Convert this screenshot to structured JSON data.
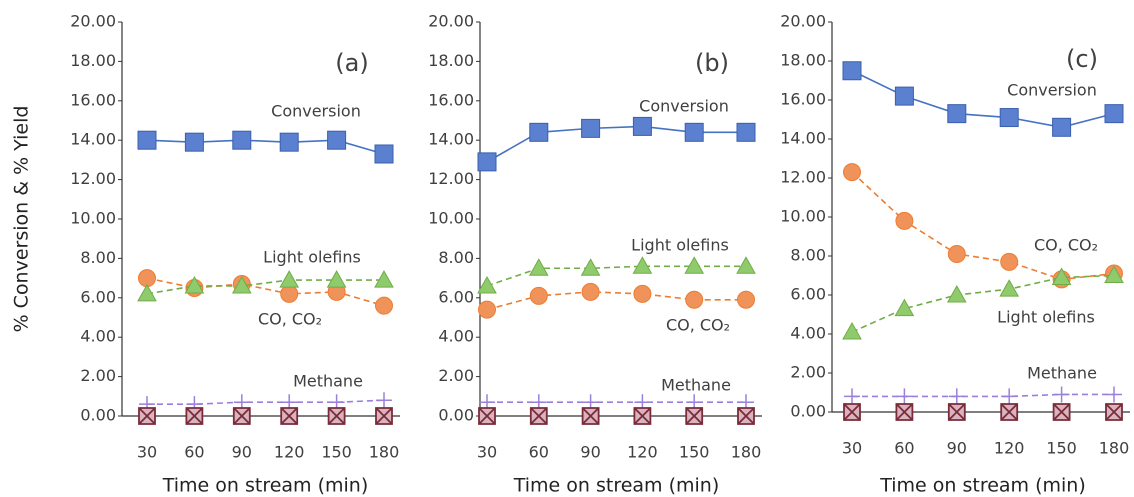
{
  "chart_data": [
    {
      "type": "line",
      "title": "(a)",
      "xlabel": "Time on stream (min)",
      "ylabel": "% Conversion & % Yield",
      "categories": [
        "30",
        "60",
        "90",
        "120",
        "150",
        "180"
      ],
      "ylim": [
        0,
        20
      ],
      "yticks": [
        {
          "value": 0,
          "label": "0.00"
        },
        {
          "value": 2,
          "label": "2.00"
        },
        {
          "value": 4,
          "label": "4.00"
        },
        {
          "value": 6,
          "label": "6.00"
        },
        {
          "value": 8,
          "label": "8.00"
        },
        {
          "value": 10,
          "label": "10.00"
        },
        {
          "value": 12,
          "label": "12.00"
        },
        {
          "value": 14,
          "label": "14.00"
        },
        {
          "value": 16,
          "label": "16.00"
        },
        {
          "value": 18,
          "label": "18.00"
        },
        {
          "value": 20,
          "label": "20.00"
        }
      ],
      "series": [
        {
          "name": "Conversion",
          "color": "#4472c4",
          "marker": "square",
          "dashed": false,
          "values": [
            14.0,
            13.9,
            14.0,
            13.9,
            14.0,
            13.3
          ]
        },
        {
          "name": "CO, CO₂",
          "color": "#ed7d31",
          "marker": "circle",
          "dashed": true,
          "values": [
            7.0,
            6.5,
            6.7,
            6.2,
            6.3,
            5.6
          ]
        },
        {
          "name": "Light olefins",
          "color": "#70ad47",
          "marker": "triangle",
          "dashed": true,
          "values": [
            6.2,
            6.6,
            6.6,
            6.9,
            6.9,
            6.9
          ]
        },
        {
          "name": "Methane",
          "color": "#9b7fdc",
          "marker": "plus",
          "dashed": true,
          "values": [
            0.6,
            0.6,
            0.7,
            0.7,
            0.7,
            0.8
          ]
        },
        {
          "color": "#7a2b3a",
          "marker": "boxx",
          "dashed": false,
          "values": [
            0,
            0,
            0,
            0,
            0,
            0
          ]
        }
      ]
    },
    {
      "type": "line",
      "title": "(b)",
      "xlabel": "Time on stream (min)",
      "categories": [
        "30",
        "60",
        "90",
        "120",
        "150",
        "180"
      ],
      "ylim": [
        0,
        20
      ],
      "yticks": [
        {
          "value": 0,
          "label": "0.00"
        },
        {
          "value": 2,
          "label": "2.00"
        },
        {
          "value": 4,
          "label": "4.00"
        },
        {
          "value": 6,
          "label": "6.00"
        },
        {
          "value": 8,
          "label": "8.00"
        },
        {
          "value": 10,
          "label": "10.00"
        },
        {
          "value": 12,
          "label": "12.00"
        },
        {
          "value": 14,
          "label": "14.00"
        },
        {
          "value": 16,
          "label": "16.00"
        },
        {
          "value": 18,
          "label": "18.00"
        },
        {
          "value": 20,
          "label": "20.00"
        }
      ],
      "series": [
        {
          "name": "Conversion",
          "color": "#4472c4",
          "marker": "square",
          "dashed": false,
          "values": [
            12.9,
            14.4,
            14.6,
            14.7,
            14.4,
            14.4
          ]
        },
        {
          "name": "CO, CO₂",
          "color": "#ed7d31",
          "marker": "circle",
          "dashed": true,
          "values": [
            5.4,
            6.1,
            6.3,
            6.2,
            5.9,
            5.9
          ]
        },
        {
          "name": "Light olefins",
          "color": "#70ad47",
          "marker": "triangle",
          "dashed": true,
          "values": [
            6.6,
            7.5,
            7.5,
            7.6,
            7.6,
            7.6
          ]
        },
        {
          "name": "Methane",
          "color": "#9b7fdc",
          "marker": "plus",
          "dashed": true,
          "values": [
            0.7,
            0.7,
            0.7,
            0.7,
            0.7,
            0.7
          ]
        },
        {
          "color": "#7a2b3a",
          "marker": "boxx",
          "dashed": false,
          "values": [
            0,
            0,
            0,
            0,
            0,
            0
          ]
        }
      ]
    },
    {
      "type": "line",
      "title": "(c)",
      "xlabel": "Time on stream (min)",
      "categories": [
        "30",
        "60",
        "90",
        "120",
        "150",
        "180"
      ],
      "ylim": [
        0,
        20
      ],
      "yticks": [
        {
          "value": 0,
          "label": "0.00"
        },
        {
          "value": 2,
          "label": "2.00"
        },
        {
          "value": 4,
          "label": "4.00"
        },
        {
          "value": 6,
          "label": "6.00"
        },
        {
          "value": 8,
          "label": "8.00"
        },
        {
          "value": 10,
          "label": "10.00"
        },
        {
          "value": 12,
          "label": "12.00"
        },
        {
          "value": 14,
          "label": "14.00"
        },
        {
          "value": 16,
          "label": "16.00"
        },
        {
          "value": 18,
          "label": "18.00"
        },
        {
          "value": 20,
          "label": "20.00"
        }
      ],
      "series": [
        {
          "name": "Conversion",
          "color": "#4472c4",
          "marker": "square",
          "dashed": false,
          "values": [
            17.5,
            16.2,
            15.3,
            15.1,
            14.6,
            15.3
          ]
        },
        {
          "name": "CO, CO₂",
          "color": "#ed7d31",
          "marker": "circle",
          "dashed": true,
          "values": [
            12.3,
            9.8,
            8.1,
            7.7,
            6.8,
            7.1
          ]
        },
        {
          "name": "Light olefins",
          "color": "#70ad47",
          "marker": "triangle",
          "dashed": true,
          "values": [
            4.1,
            5.3,
            6.0,
            6.3,
            6.9,
            7.0
          ]
        },
        {
          "name": "Methane",
          "color": "#9b7fdc",
          "marker": "plus",
          "dashed": true,
          "values": [
            0.8,
            0.8,
            0.8,
            0.8,
            0.9,
            0.9
          ]
        },
        {
          "color": "#7a2b3a",
          "marker": "boxx",
          "dashed": false,
          "values": [
            0,
            0,
            0,
            0,
            0,
            0
          ]
        }
      ]
    }
  ]
}
